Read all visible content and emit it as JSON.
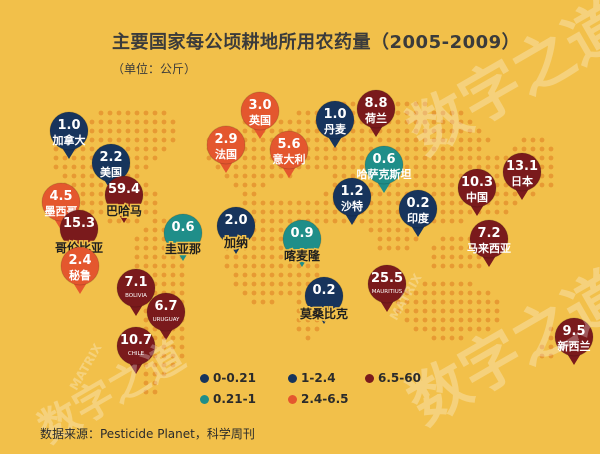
{
  "header": {
    "title": "主要国家每公顷耕地所用农药量（2005-2009）",
    "subtitle": "（单位：公斤）"
  },
  "source": "数据来源：Pesticide Planet，科学周刊",
  "watermark": {
    "main": "数字之道",
    "latin": "MATRIX"
  },
  "colors": {
    "background": "#f2c04a",
    "map_dots": "#e79a33",
    "bin_0_021": "#17345c",
    "bin_021_1": "#1f8e89",
    "bin_1_24": "#17345c",
    "bin_24_65": "#e4572e",
    "bin_65_60": "#7a1a1c"
  },
  "legend": [
    {
      "label": "0-0.21",
      "color": "#17345c"
    },
    {
      "label": "1-2.4",
      "color": "#17345c"
    },
    {
      "label": "6.5-60",
      "color": "#7a1a1c"
    },
    {
      "label": "0.21-1",
      "color": "#1f8e89"
    },
    {
      "label": "2.4-6.5",
      "color": "#e4572e"
    }
  ],
  "chart_data": {
    "type": "map",
    "title": "主要国家每公顷耕地所用农药量（2005-2009）",
    "unit": "（单位：公斤）",
    "series": [
      {
        "country": "加拿大",
        "value": 1.0,
        "color": "#17345c"
      },
      {
        "country": "美国",
        "value": 2.2,
        "color": "#17345c"
      },
      {
        "country": "墨西哥",
        "value": 4.5,
        "color": "#e4572e"
      },
      {
        "country": "巴哈马",
        "value": 59.4,
        "color": "#7a1a1c"
      },
      {
        "country": "哥伦比亚",
        "value": 15.3,
        "color": "#7a1a1c"
      },
      {
        "country": "圭亚那",
        "value": 0.6,
        "color": "#1f8e89"
      },
      {
        "country": "加纳",
        "value": 2.0,
        "color": "#17345c"
      },
      {
        "country": "秘鲁",
        "value": 2.4,
        "color": "#e4572e"
      },
      {
        "country": "BOLIVIA",
        "value": 7.1,
        "color": "#7a1a1c"
      },
      {
        "country": "URUGUAY",
        "value": 6.7,
        "color": "#7a1a1c"
      },
      {
        "country": "CHILE",
        "value": 10.7,
        "color": "#7a1a1c"
      },
      {
        "country": "英国",
        "value": 3.0,
        "color": "#e4572e"
      },
      {
        "country": "法国",
        "value": 2.9,
        "color": "#e4572e"
      },
      {
        "country": "意大利",
        "value": 5.6,
        "color": "#e4572e"
      },
      {
        "country": "丹麦",
        "value": 1.0,
        "color": "#17345c"
      },
      {
        "country": "荷兰",
        "value": 8.8,
        "color": "#7a1a1c"
      },
      {
        "country": "哈萨克斯坦",
        "value": 0.6,
        "color": "#1f8e89"
      },
      {
        "country": "沙特",
        "value": 1.2,
        "color": "#17345c"
      },
      {
        "country": "印度",
        "value": 0.2,
        "color": "#17345c"
      },
      {
        "country": "喀麦隆",
        "value": 0.9,
        "color": "#1f8e89"
      },
      {
        "country": "莫桑比克",
        "value": 0.2,
        "color": "#17345c"
      },
      {
        "country": "MAURITIUS",
        "value": 25.5,
        "color": "#7a1a1c"
      },
      {
        "country": "中国",
        "value": 10.3,
        "color": "#7a1a1c"
      },
      {
        "country": "日本",
        "value": 13.1,
        "color": "#7a1a1c"
      },
      {
        "country": "马来西亚",
        "value": 7.2,
        "color": "#7a1a1c"
      },
      {
        "country": "新西兰",
        "value": 9.5,
        "color": "#7a1a1c"
      }
    ]
  }
}
